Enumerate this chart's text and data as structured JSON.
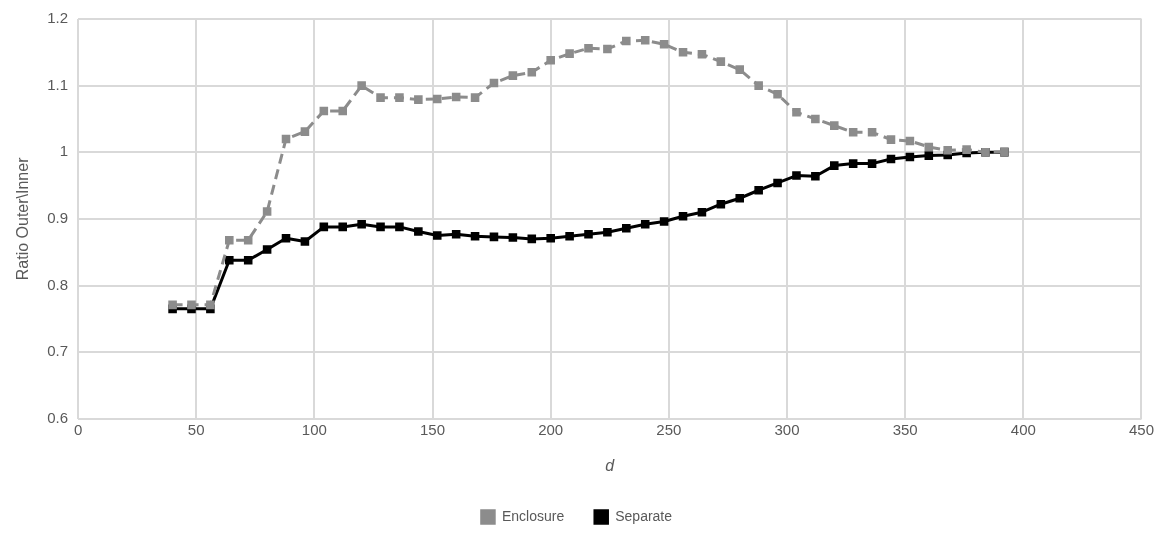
{
  "chart_data": {
    "type": "line",
    "xlabel": "d",
    "ylabel": "Ratio Outer\\Inner",
    "x": [
      40,
      48,
      56,
      64,
      72,
      80,
      88,
      96,
      104,
      112,
      120,
      128,
      136,
      144,
      152,
      160,
      168,
      176,
      184,
      192,
      200,
      208,
      216,
      224,
      232,
      240,
      248,
      256,
      264,
      272,
      280,
      288,
      296,
      304,
      312,
      320,
      328,
      336,
      344,
      352,
      360,
      368,
      376,
      384,
      392
    ],
    "series": [
      {
        "name": "Separate",
        "color": "#000000",
        "line_style": "solid",
        "values": [
          0.765,
          0.765,
          0.765,
          0.838,
          0.838,
          0.854,
          0.871,
          0.866,
          0.888,
          0.888,
          0.892,
          0.888,
          0.888,
          0.881,
          0.875,
          0.877,
          0.874,
          0.873,
          0.872,
          0.87,
          0.871,
          0.874,
          0.877,
          0.88,
          0.886,
          0.892,
          0.896,
          0.904,
          0.91,
          0.922,
          0.931,
          0.943,
          0.954,
          0.965,
          0.964,
          0.98,
          0.983,
          0.983,
          0.99,
          0.993,
          0.995,
          0.996,
          0.999,
          1.0,
          1.0
        ]
      },
      {
        "name": "Enclosure",
        "color": "#8c8c8c",
        "line_style": "dashed",
        "values": [
          0.771,
          0.771,
          0.771,
          0.868,
          0.868,
          0.911,
          1.02,
          1.031,
          1.062,
          1.062,
          1.1,
          1.082,
          1.082,
          1.079,
          1.08,
          1.083,
          1.082,
          1.104,
          1.115,
          1.12,
          1.138,
          1.148,
          1.156,
          1.155,
          1.167,
          1.168,
          1.162,
          1.15,
          1.147,
          1.136,
          1.124,
          1.1,
          1.087,
          1.06,
          1.05,
          1.04,
          1.03,
          1.03,
          1.019,
          1.017,
          1.008,
          1.003,
          1.004,
          1.0,
          1.001
        ]
      }
    ],
    "xlim": [
      0,
      450
    ],
    "xticks": [
      0,
      50,
      100,
      150,
      200,
      250,
      300,
      350,
      400,
      450
    ],
    "ylim": [
      0.6,
      1.2
    ],
    "yticks": [
      0.6,
      0.7,
      0.8,
      0.9,
      1,
      1.1,
      1.2
    ],
    "grid": true,
    "legend": "bottom",
    "marker": "square"
  }
}
